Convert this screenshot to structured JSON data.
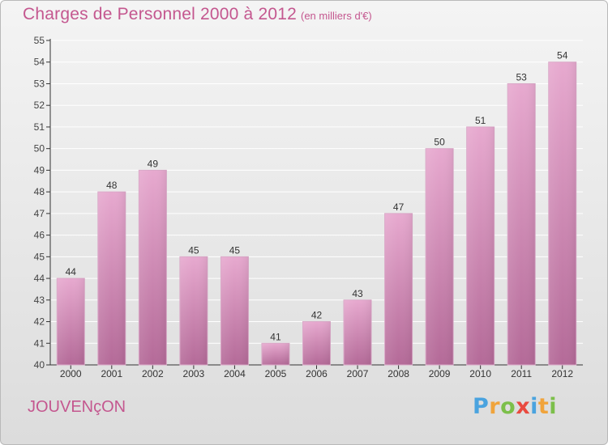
{
  "title": "Charges de Personnel 2000 à 2012",
  "subtitle": "(en milliers d'€)",
  "commune": "JOUVENçON",
  "brand": {
    "letters": [
      "P",
      "r",
      "o",
      "x",
      "i",
      "t",
      "i"
    ],
    "colors": [
      "#4aa3df",
      "#f0a43c",
      "#7cbf4a",
      "#e94a3f",
      "#4aa3df",
      "#f0a43c",
      "#7cbf4a"
    ]
  },
  "colors": {
    "bar_top": "#e7a9cf",
    "bar_bottom": "#b46a98",
    "text": "#c4578f"
  },
  "chart_data": {
    "type": "bar",
    "categories": [
      "2000",
      "2001",
      "2002",
      "2003",
      "2004",
      "2005",
      "2006",
      "2007",
      "2008",
      "2009",
      "2010",
      "2011",
      "2012"
    ],
    "values": [
      44,
      48,
      49,
      45,
      45,
      41,
      42,
      43,
      47,
      50,
      51,
      53,
      54
    ],
    "ylim": [
      40,
      55
    ],
    "yticks": [
      40,
      41,
      42,
      43,
      44,
      45,
      46,
      47,
      48,
      49,
      50,
      51,
      52,
      53,
      54,
      55
    ],
    "grid": true
  }
}
